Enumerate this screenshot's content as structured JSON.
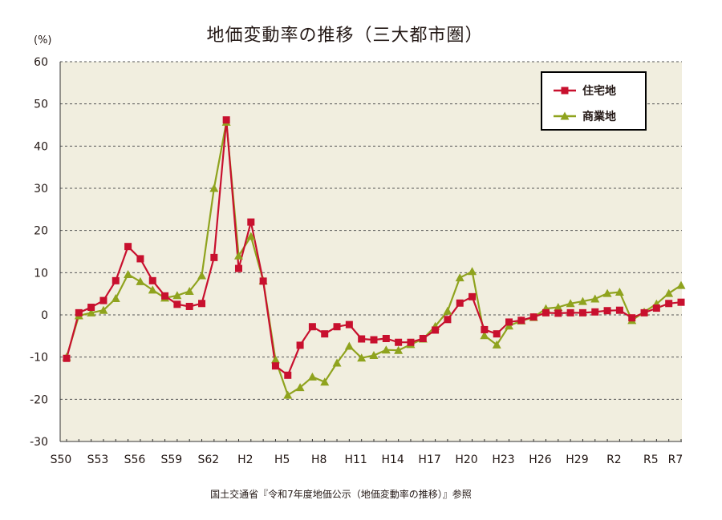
{
  "chart_data": {
    "type": "line",
    "title": "地価変動率の推移（三大都市圏）",
    "ylabel": "(%)",
    "xlabel": "",
    "ylim": [
      -30,
      60
    ],
    "yticks": [
      60,
      50,
      40,
      30,
      20,
      10,
      0,
      -10,
      -20,
      -30
    ],
    "x_tick_labels": [
      "S50",
      "S53",
      "S56",
      "S59",
      "S62",
      "H2",
      "H5",
      "H8",
      "H11",
      "H14",
      "H17",
      "H20",
      "H23",
      "H26",
      "H29",
      "R2",
      "R5",
      "R7"
    ],
    "x_tick_index": [
      0,
      3,
      6,
      9,
      12,
      15,
      18,
      21,
      24,
      27,
      30,
      33,
      36,
      39,
      42,
      45,
      48,
      50
    ],
    "grid": true,
    "legend_position": "top-right",
    "series": [
      {
        "name": "住宅地",
        "color": "#c8102e",
        "marker": "square",
        "values": [
          -10.3,
          0.5,
          1.8,
          3.4,
          8.1,
          16.2,
          13.3,
          8.1,
          4.5,
          2.5,
          2.0,
          2.7,
          13.6,
          46.2,
          11.0,
          22.0,
          8.0,
          -12.1,
          -14.3,
          -7.2,
          -2.8,
          -4.5,
          -2.8,
          -2.3,
          -5.7,
          -5.9,
          -5.6,
          -6.5,
          -6.5,
          -5.6,
          -3.6,
          -1.1,
          2.8,
          4.3,
          -3.5,
          -4.5,
          -1.7,
          -1.3,
          -0.5,
          0.5,
          0.4,
          0.5,
          0.5,
          0.7,
          1.0,
          1.1,
          -0.7,
          0.5,
          1.6,
          2.7,
          3.0
        ]
      },
      {
        "name": "商業地",
        "color": "#8fa31e",
        "marker": "triangle",
        "values": [
          -10.0,
          -0.2,
          0.5,
          1.1,
          3.9,
          9.6,
          7.9,
          5.9,
          4.0,
          4.6,
          5.6,
          9.3,
          30.0,
          45.7,
          14.0,
          18.6,
          8.1,
          -10.6,
          -19.0,
          -17.2,
          -14.7,
          -15.9,
          -11.4,
          -7.4,
          -10.2,
          -9.6,
          -8.3,
          -8.4,
          -7.0,
          -5.7,
          -2.7,
          0.9,
          8.8,
          10.3,
          -4.9,
          -7.1,
          -2.6,
          -1.4,
          -0.6,
          1.5,
          1.8,
          2.7,
          3.2,
          3.8,
          5.1,
          5.4,
          -1.3,
          0.7,
          2.6,
          5.1,
          7.0
        ]
      }
    ]
  },
  "source_note": "国土交通省『令和7年度地価公示（地価変動率の推移）』参照"
}
